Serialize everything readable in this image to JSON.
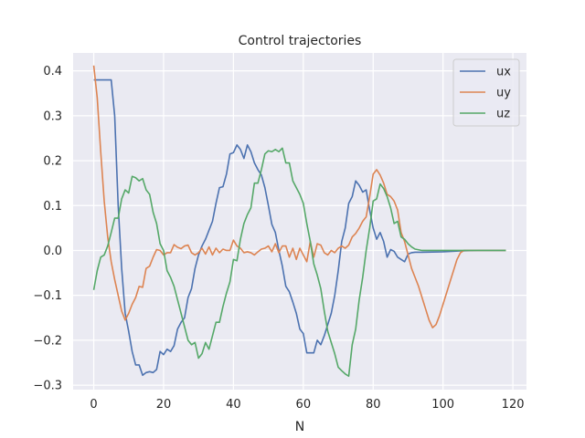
{
  "chart_data": {
    "type": "line",
    "title": "Control trajectories",
    "xlabel": "N",
    "ylabel": "",
    "xlim": [
      -5.9,
      123.9
    ],
    "ylim": [
      -0.31,
      0.44
    ],
    "xticks": [
      0,
      20,
      40,
      60,
      80,
      100,
      120
    ],
    "yticks": [
      -0.3,
      -0.2,
      -0.1,
      0.0,
      0.1,
      0.2,
      0.3,
      0.4
    ],
    "xtick_labels": [
      "0",
      "20",
      "40",
      "60",
      "80",
      "100",
      "120"
    ],
    "ytick_labels": [
      "−0.3",
      "−0.2",
      "−0.1",
      "0.0",
      "0.1",
      "0.2",
      "0.3",
      "0.4"
    ],
    "grid": true,
    "legend_position": "top-right",
    "series": [
      {
        "name": "ux",
        "color": "#4c72b0",
        "points": [
          [
            0,
            0.38
          ],
          [
            1,
            0.38
          ],
          [
            2,
            0.38
          ],
          [
            3,
            0.38
          ],
          [
            4,
            0.38
          ],
          [
            5,
            0.38
          ],
          [
            6,
            0.3
          ],
          [
            7,
            0.1
          ],
          [
            8,
            -0.04
          ],
          [
            9,
            -0.14
          ],
          [
            10,
            -0.18
          ],
          [
            11,
            -0.225
          ],
          [
            12,
            -0.255
          ],
          [
            13,
            -0.255
          ],
          [
            14,
            -0.278
          ],
          [
            15,
            -0.272
          ],
          [
            16,
            -0.27
          ],
          [
            17,
            -0.272
          ],
          [
            18,
            -0.265
          ],
          [
            19,
            -0.225
          ],
          [
            20,
            -0.232
          ],
          [
            21,
            -0.22
          ],
          [
            22,
            -0.225
          ],
          [
            23,
            -0.212
          ],
          [
            24,
            -0.175
          ],
          [
            25,
            -0.16
          ],
          [
            26,
            -0.15
          ],
          [
            27,
            -0.105
          ],
          [
            28,
            -0.085
          ],
          [
            29,
            -0.04
          ],
          [
            30,
            -0.01
          ],
          [
            31,
            0.01
          ],
          [
            32,
            0.025
          ],
          [
            33,
            0.045
          ],
          [
            34,
            0.065
          ],
          [
            35,
            0.105
          ],
          [
            36,
            0.14
          ],
          [
            37,
            0.142
          ],
          [
            38,
            0.17
          ],
          [
            39,
            0.215
          ],
          [
            40,
            0.218
          ],
          [
            41,
            0.235
          ],
          [
            42,
            0.225
          ],
          [
            43,
            0.205
          ],
          [
            44,
            0.235
          ],
          [
            45,
            0.22
          ],
          [
            46,
            0.195
          ],
          [
            47,
            0.18
          ],
          [
            48,
            0.168
          ],
          [
            49,
            0.14
          ],
          [
            50,
            0.1
          ],
          [
            51,
            0.058
          ],
          [
            52,
            0.04
          ],
          [
            53,
            0.0
          ],
          [
            54,
            -0.035
          ],
          [
            55,
            -0.08
          ],
          [
            56,
            -0.092
          ],
          [
            57,
            -0.115
          ],
          [
            58,
            -0.14
          ],
          [
            59,
            -0.175
          ],
          [
            60,
            -0.185
          ],
          [
            61,
            -0.228
          ],
          [
            62,
            -0.228
          ],
          [
            63,
            -0.228
          ],
          [
            64,
            -0.2
          ],
          [
            65,
            -0.21
          ],
          [
            66,
            -0.19
          ],
          [
            67,
            -0.165
          ],
          [
            68,
            -0.14
          ],
          [
            69,
            -0.1
          ],
          [
            70,
            -0.045
          ],
          [
            71,
            0.02
          ],
          [
            72,
            0.05
          ],
          [
            73,
            0.105
          ],
          [
            74,
            0.12
          ],
          [
            75,
            0.155
          ],
          [
            76,
            0.145
          ],
          [
            77,
            0.13
          ],
          [
            78,
            0.135
          ],
          [
            79,
            0.09
          ],
          [
            80,
            0.05
          ],
          [
            81,
            0.025
          ],
          [
            82,
            0.04
          ],
          [
            83,
            0.02
          ],
          [
            84,
            -0.015
          ],
          [
            85,
            0.002
          ],
          [
            86,
            -0.002
          ],
          [
            87,
            -0.015
          ],
          [
            88,
            -0.02
          ],
          [
            89,
            -0.025
          ],
          [
            90,
            -0.008
          ],
          [
            91,
            -0.005
          ],
          [
            92,
            -0.004
          ],
          [
            94,
            -0.004
          ],
          [
            100,
            -0.003
          ],
          [
            105,
            -0.001
          ],
          [
            110,
            0.0
          ],
          [
            118,
            0.0
          ]
        ]
      },
      {
        "name": "uy",
        "color": "#dd8452",
        "points": [
          [
            0,
            0.412
          ],
          [
            1,
            0.34
          ],
          [
            2,
            0.22
          ],
          [
            3,
            0.11
          ],
          [
            4,
            0.03
          ],
          [
            5,
            -0.025
          ],
          [
            6,
            -0.065
          ],
          [
            7,
            -0.1
          ],
          [
            8,
            -0.135
          ],
          [
            9,
            -0.155
          ],
          [
            10,
            -0.14
          ],
          [
            11,
            -0.12
          ],
          [
            12,
            -0.105
          ],
          [
            13,
            -0.08
          ],
          [
            14,
            -0.082
          ],
          [
            15,
            -0.04
          ],
          [
            16,
            -0.035
          ],
          [
            17,
            -0.015
          ],
          [
            18,
            0.002
          ],
          [
            19,
            0.0
          ],
          [
            20,
            -0.01
          ],
          [
            21,
            -0.005
          ],
          [
            22,
            -0.005
          ],
          [
            23,
            0.013
          ],
          [
            24,
            0.007
          ],
          [
            25,
            0.004
          ],
          [
            26,
            0.01
          ],
          [
            27,
            0.012
          ],
          [
            28,
            -0.005
          ],
          [
            29,
            -0.01
          ],
          [
            30,
            -0.005
          ],
          [
            31,
            0.005
          ],
          [
            32,
            -0.008
          ],
          [
            33,
            0.008
          ],
          [
            34,
            -0.01
          ],
          [
            35,
            0.005
          ],
          [
            36,
            -0.005
          ],
          [
            37,
            0.003
          ],
          [
            38,
            0.0
          ],
          [
            39,
            0.0
          ],
          [
            40,
            0.023
          ],
          [
            41,
            0.01
          ],
          [
            42,
            0.005
          ],
          [
            43,
            -0.005
          ],
          [
            44,
            -0.003
          ],
          [
            45,
            -0.005
          ],
          [
            46,
            -0.01
          ],
          [
            47,
            -0.003
          ],
          [
            48,
            0.003
          ],
          [
            49,
            0.005
          ],
          [
            50,
            0.01
          ],
          [
            51,
            -0.003
          ],
          [
            52,
            0.015
          ],
          [
            53,
            -0.005
          ],
          [
            54,
            0.01
          ],
          [
            55,
            0.01
          ],
          [
            56,
            -0.015
          ],
          [
            57,
            0.005
          ],
          [
            58,
            -0.02
          ],
          [
            59,
            0.005
          ],
          [
            60,
            -0.01
          ],
          [
            61,
            -0.025
          ],
          [
            62,
            0.02
          ],
          [
            63,
            -0.015
          ],
          [
            64,
            0.015
          ],
          [
            65,
            0.012
          ],
          [
            66,
            -0.005
          ],
          [
            67,
            -0.01
          ],
          [
            68,
            0.0
          ],
          [
            69,
            -0.005
          ],
          [
            70,
            0.005
          ],
          [
            71,
            0.01
          ],
          [
            72,
            0.005
          ],
          [
            73,
            0.012
          ],
          [
            74,
            0.03
          ],
          [
            75,
            0.038
          ],
          [
            76,
            0.05
          ],
          [
            77,
            0.065
          ],
          [
            78,
            0.075
          ],
          [
            79,
            0.12
          ],
          [
            80,
            0.17
          ],
          [
            81,
            0.18
          ],
          [
            82,
            0.168
          ],
          [
            83,
            0.15
          ],
          [
            84,
            0.125
          ],
          [
            85,
            0.12
          ],
          [
            86,
            0.11
          ],
          [
            87,
            0.09
          ],
          [
            88,
            0.04
          ],
          [
            89,
            0.02
          ],
          [
            90,
            -0.01
          ],
          [
            91,
            -0.04
          ],
          [
            92,
            -0.06
          ],
          [
            93,
            -0.08
          ],
          [
            94,
            -0.105
          ],
          [
            95,
            -0.13
          ],
          [
            96,
            -0.155
          ],
          [
            97,
            -0.172
          ],
          [
            98,
            -0.165
          ],
          [
            99,
            -0.145
          ],
          [
            100,
            -0.12
          ],
          [
            101,
            -0.095
          ],
          [
            102,
            -0.07
          ],
          [
            103,
            -0.045
          ],
          [
            104,
            -0.02
          ],
          [
            105,
            -0.005
          ],
          [
            106,
            0.0
          ],
          [
            110,
            0.0
          ],
          [
            118,
            0.0
          ]
        ]
      },
      {
        "name": "uz",
        "color": "#55a868",
        "points": [
          [
            0,
            -0.088
          ],
          [
            1,
            -0.045
          ],
          [
            2,
            -0.015
          ],
          [
            3,
            -0.01
          ],
          [
            4,
            0.01
          ],
          [
            5,
            0.04
          ],
          [
            6,
            0.072
          ],
          [
            7,
            0.072
          ],
          [
            8,
            0.115
          ],
          [
            9,
            0.135
          ],
          [
            10,
            0.128
          ],
          [
            11,
            0.165
          ],
          [
            12,
            0.162
          ],
          [
            13,
            0.155
          ],
          [
            14,
            0.16
          ],
          [
            15,
            0.135
          ],
          [
            16,
            0.125
          ],
          [
            17,
            0.085
          ],
          [
            18,
            0.06
          ],
          [
            19,
            0.015
          ],
          [
            20,
            0.0
          ],
          [
            21,
            -0.045
          ],
          [
            22,
            -0.06
          ],
          [
            23,
            -0.08
          ],
          [
            24,
            -0.11
          ],
          [
            25,
            -0.14
          ],
          [
            26,
            -0.17
          ],
          [
            27,
            -0.2
          ],
          [
            28,
            -0.21
          ],
          [
            29,
            -0.205
          ],
          [
            30,
            -0.24
          ],
          [
            31,
            -0.23
          ],
          [
            32,
            -0.205
          ],
          [
            33,
            -0.22
          ],
          [
            34,
            -0.19
          ],
          [
            35,
            -0.16
          ],
          [
            36,
            -0.16
          ],
          [
            37,
            -0.125
          ],
          [
            38,
            -0.095
          ],
          [
            39,
            -0.07
          ],
          [
            40,
            -0.02
          ],
          [
            41,
            -0.023
          ],
          [
            42,
            0.025
          ],
          [
            43,
            0.06
          ],
          [
            44,
            0.08
          ],
          [
            45,
            0.095
          ],
          [
            46,
            0.15
          ],
          [
            47,
            0.15
          ],
          [
            48,
            0.18
          ],
          [
            49,
            0.215
          ],
          [
            50,
            0.222
          ],
          [
            51,
            0.22
          ],
          [
            52,
            0.225
          ],
          [
            53,
            0.22
          ],
          [
            54,
            0.228
          ],
          [
            55,
            0.195
          ],
          [
            56,
            0.195
          ],
          [
            57,
            0.155
          ],
          [
            58,
            0.14
          ],
          [
            59,
            0.125
          ],
          [
            60,
            0.105
          ],
          [
            61,
            0.06
          ],
          [
            62,
            0.02
          ],
          [
            63,
            -0.03
          ],
          [
            64,
            -0.055
          ],
          [
            65,
            -0.085
          ],
          [
            66,
            -0.135
          ],
          [
            67,
            -0.18
          ],
          [
            68,
            -0.205
          ],
          [
            69,
            -0.23
          ],
          [
            70,
            -0.26
          ],
          [
            71,
            -0.268
          ],
          [
            72,
            -0.275
          ],
          [
            73,
            -0.28
          ],
          [
            74,
            -0.21
          ],
          [
            75,
            -0.175
          ],
          [
            76,
            -0.11
          ],
          [
            77,
            -0.06
          ],
          [
            78,
            0.0
          ],
          [
            79,
            0.05
          ],
          [
            80,
            0.11
          ],
          [
            81,
            0.115
          ],
          [
            82,
            0.148
          ],
          [
            83,
            0.138
          ],
          [
            84,
            0.12
          ],
          [
            85,
            0.095
          ],
          [
            86,
            0.06
          ],
          [
            87,
            0.065
          ],
          [
            88,
            0.03
          ],
          [
            89,
            0.025
          ],
          [
            90,
            0.015
          ],
          [
            91,
            0.008
          ],
          [
            92,
            0.003
          ],
          [
            94,
            0.0
          ],
          [
            100,
            0.0
          ],
          [
            110,
            0.0
          ],
          [
            118,
            0.0
          ]
        ]
      }
    ]
  }
}
